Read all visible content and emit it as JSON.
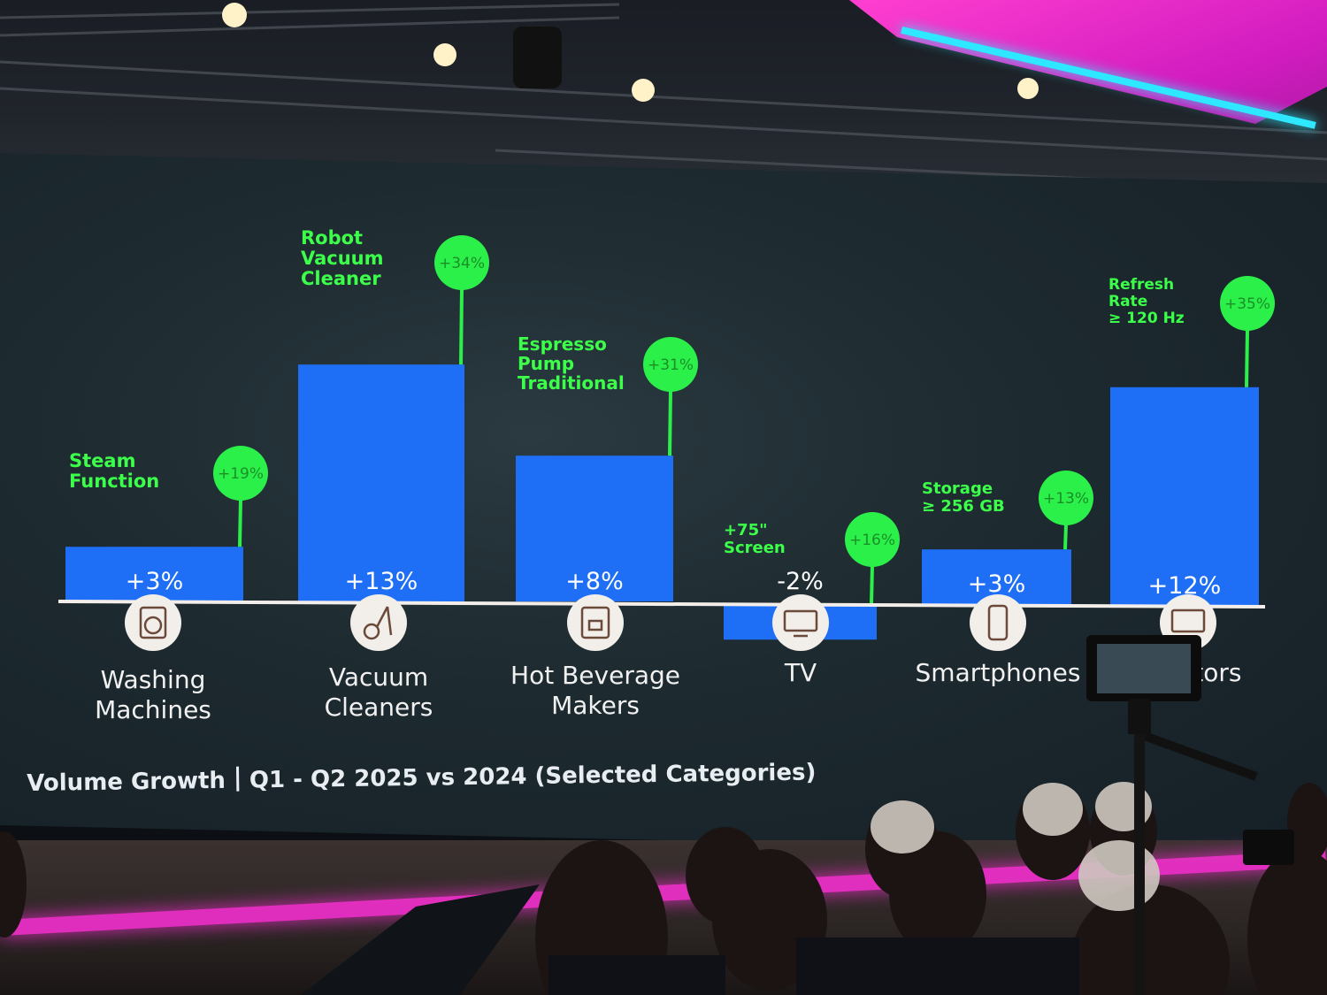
{
  "chart_data": {
    "type": "bar",
    "title": "Volume Growth",
    "subtitle": "Q1 - Q2 2025 vs 2024 (Selected Categories)",
    "categories": [
      "Washing Machines",
      "Vacuum Cleaners",
      "Hot Beverage Makers",
      "TV",
      "Smartphones",
      "Monitors"
    ],
    "category_lines": [
      [
        "Washing",
        "Machines"
      ],
      [
        "Vacuum",
        "Cleaners"
      ],
      [
        "Hot Beverage",
        "Makers"
      ],
      [
        "TV"
      ],
      [
        "Smartphones"
      ],
      [
        "Monitors"
      ]
    ],
    "series": [
      {
        "values": [
          3,
          13,
          8,
          -2,
          3,
          12
        ],
        "labels": [
          "+3%",
          "+13%",
          "+8%",
          "-2%",
          "+3%",
          "+12%"
        ],
        "color": "#1e6ff5"
      },
      {
        "values": [
          19,
          34,
          31,
          16,
          13,
          35
        ],
        "labels": [
          "+19%",
          "+34%",
          "+31%",
          "+16%",
          "+13%",
          "+35%"
        ],
        "color": "#2cf04a"
      }
    ],
    "feature_labels": [
      [
        "Steam",
        "Function"
      ],
      [
        "Robot",
        "Vacuum",
        "Cleaner"
      ],
      [
        "Espresso",
        "Pump",
        "Traditional"
      ],
      [
        "+75\"",
        "Screen"
      ],
      [
        "Storage",
        "≥ 256 GB"
      ],
      [
        "Refresh",
        "Rate",
        "≥ 120 Hz"
      ]
    ],
    "icons": [
      "washing-machine-icon",
      "vacuum-cleaner-icon",
      "coffee-machine-icon",
      "tv-icon",
      "smartphone-icon",
      "monitor-icon"
    ],
    "colors": {
      "bar": "#1e6ff5",
      "bubble": "#2cf04a",
      "feature_text": "#3cff4a",
      "axis": "#f4eeea"
    }
  },
  "heading": {
    "left": "Volume Growth",
    "right": "Q1 - Q2 2025 vs 2024 (Selected Categories)"
  }
}
